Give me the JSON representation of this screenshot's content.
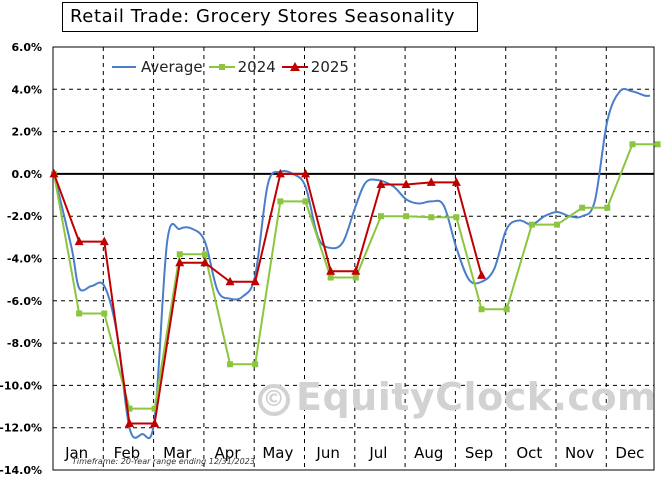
{
  "chart_data": {
    "type": "line",
    "title": "Retail Trade: Grocery Stores Seasonality",
    "xlabel": "",
    "ylabel": "",
    "ylim": [
      -14,
      6
    ],
    "y_ticks": [
      "6.0%",
      "4.0%",
      "2.0%",
      "0.0%",
      "-2.0%",
      "-4.0%",
      "-6.0%",
      "-8.0%",
      "-10.0%",
      "-12.0%",
      "-14.0%"
    ],
    "month_labels": [
      "Jan",
      "Feb",
      "Mar",
      "Apr",
      "May",
      "Jun",
      "Jul",
      "Aug",
      "Sep",
      "Oct",
      "Nov",
      "Dec"
    ],
    "grid": true,
    "legend_position": "top-left",
    "series": [
      {
        "name": "Average",
        "color": "#4a7ec8",
        "marker": "none",
        "points": [
          [
            0.0,
            0.0
          ],
          [
            0.35,
            -3.5
          ],
          [
            0.5,
            -5.4
          ],
          [
            0.75,
            -5.3
          ],
          [
            1.0,
            -5.3
          ],
          [
            1.25,
            -7.5
          ],
          [
            1.5,
            -12.0
          ],
          [
            1.75,
            -12.3
          ],
          [
            2.0,
            -11.6
          ],
          [
            2.25,
            -3.2
          ],
          [
            2.5,
            -2.6
          ],
          [
            2.75,
            -2.6
          ],
          [
            3.0,
            -3.2
          ],
          [
            3.25,
            -5.5
          ],
          [
            3.5,
            -5.9
          ],
          [
            3.75,
            -5.8
          ],
          [
            4.0,
            -4.8
          ],
          [
            4.25,
            -0.5
          ],
          [
            4.5,
            0.1
          ],
          [
            4.75,
            0.0
          ],
          [
            5.0,
            -0.6
          ],
          [
            5.25,
            -3.0
          ],
          [
            5.5,
            -3.5
          ],
          [
            5.75,
            -3.2
          ],
          [
            6.0,
            -1.5
          ],
          [
            6.2,
            -0.4
          ],
          [
            6.45,
            -0.3
          ],
          [
            6.75,
            -0.6
          ],
          [
            7.0,
            -1.2
          ],
          [
            7.25,
            -1.4
          ],
          [
            7.5,
            -1.3
          ],
          [
            7.75,
            -1.5
          ],
          [
            8.0,
            -3.5
          ],
          [
            8.25,
            -5.0
          ],
          [
            8.5,
            -5.1
          ],
          [
            8.75,
            -4.5
          ],
          [
            9.0,
            -2.6
          ],
          [
            9.25,
            -2.2
          ],
          [
            9.5,
            -2.4
          ],
          [
            9.75,
            -2.0
          ],
          [
            10.0,
            -1.8
          ],
          [
            10.25,
            -2.0
          ],
          [
            10.5,
            -2.0
          ],
          [
            10.75,
            -1.3
          ],
          [
            11.0,
            2.5
          ],
          [
            11.25,
            3.9
          ],
          [
            11.5,
            3.9
          ],
          [
            11.75,
            3.7
          ],
          [
            11.85,
            3.7
          ]
        ]
      },
      {
        "name": "2024",
        "color": "#8cc63f",
        "marker": "square",
        "points": [
          [
            0.0,
            0.0
          ],
          [
            0.5,
            -6.6
          ],
          [
            1.0,
            -6.6
          ],
          [
            1.5,
            -11.1
          ],
          [
            2.0,
            -11.1
          ],
          [
            2.5,
            -3.8
          ],
          [
            3.0,
            -3.8
          ],
          [
            3.5,
            -9.0
          ],
          [
            4.0,
            -9.0
          ],
          [
            4.5,
            -1.3
          ],
          [
            5.0,
            -1.3
          ],
          [
            5.5,
            -4.9
          ],
          [
            6.0,
            -4.9
          ],
          [
            6.5,
            -2.0
          ],
          [
            7.0,
            -2.0
          ],
          [
            7.5,
            -2.05
          ],
          [
            8.0,
            -2.05
          ],
          [
            8.5,
            -6.4
          ],
          [
            9.0,
            -6.4
          ],
          [
            9.5,
            -2.4
          ],
          [
            10.0,
            -2.4
          ],
          [
            10.5,
            -1.6
          ],
          [
            11.0,
            -1.6
          ],
          [
            11.5,
            1.4
          ],
          [
            12.0,
            1.4
          ]
        ]
      },
      {
        "name": "2025",
        "color": "#c00000",
        "marker": "triangle",
        "points": [
          [
            0.0,
            0.0
          ],
          [
            0.5,
            -3.2
          ],
          [
            1.0,
            -3.2
          ],
          [
            1.5,
            -11.8
          ],
          [
            2.0,
            -11.8
          ],
          [
            2.5,
            -4.2
          ],
          [
            3.0,
            -4.2
          ],
          [
            3.5,
            -5.1
          ],
          [
            4.0,
            -5.1
          ],
          [
            4.5,
            0.0
          ],
          [
            5.0,
            0.0
          ],
          [
            5.5,
            -4.6
          ],
          [
            6.0,
            -4.6
          ],
          [
            6.5,
            -0.5
          ],
          [
            7.0,
            -0.5
          ],
          [
            7.5,
            -0.4
          ],
          [
            8.0,
            -0.4
          ],
          [
            8.5,
            -4.8
          ]
        ]
      }
    ]
  },
  "watermark": "EquityClock.com",
  "watermark_symbol": "©",
  "footnote": "Timeframe: 20-Year range ending 12/31/2023"
}
